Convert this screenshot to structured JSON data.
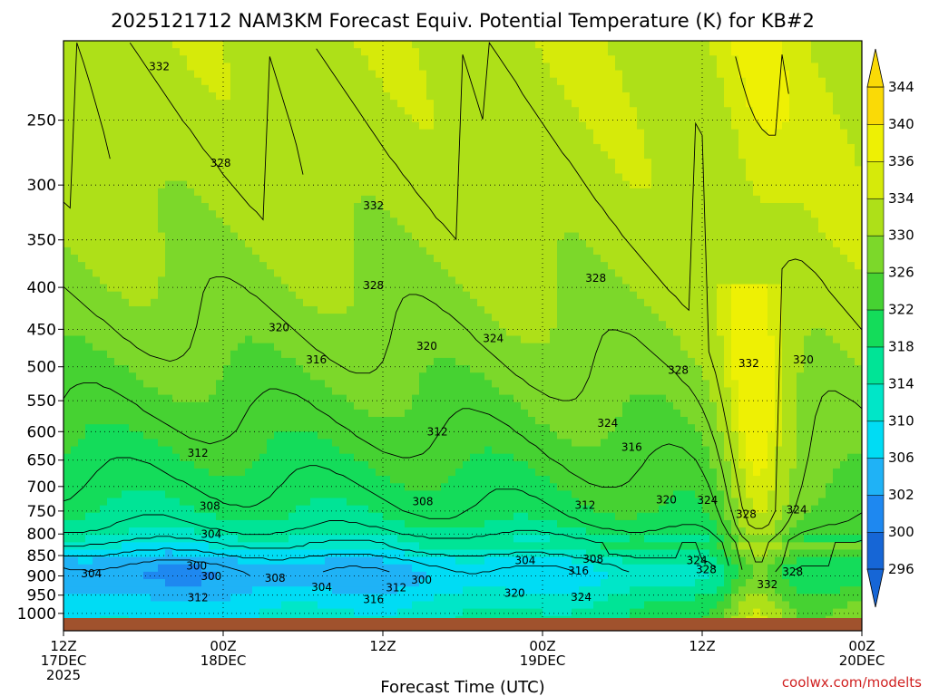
{
  "chart_data": {
    "type": "heatmap",
    "title": "2025121712 NAM3KM Forecast Equiv. Potential Temperature (K) for KB#2",
    "xlabel": "Forecast Time (UTC)",
    "ylabel": "",
    "x_ticks": [
      {
        "hours": 0,
        "line1": "12Z",
        "line2": "17DEC",
        "line3": "2025"
      },
      {
        "hours": 12,
        "line1": "00Z",
        "line2": "18DEC",
        "line3": ""
      },
      {
        "hours": 24,
        "line1": "12Z",
        "line2": "",
        "line3": ""
      },
      {
        "hours": 36,
        "line1": "00Z",
        "line2": "19DEC",
        "line3": ""
      },
      {
        "hours": 48,
        "line1": "12Z",
        "line2": "",
        "line3": ""
      },
      {
        "hours": 60,
        "line1": "00Z",
        "line2": "20DEC",
        "line3": ""
      }
    ],
    "xlim_hours": [
      0,
      60
    ],
    "y_axis": "pressure (hPa), log scale, inverted",
    "ylim": [
      1050,
      200
    ],
    "y_ticks": [
      250,
      300,
      350,
      400,
      450,
      500,
      550,
      600,
      650,
      700,
      750,
      800,
      850,
      900,
      950,
      1000
    ],
    "grid": true,
    "units": "K",
    "colorbar": {
      "levels": [
        296,
        300,
        302,
        306,
        310,
        314,
        318,
        322,
        326,
        330,
        334,
        336,
        340,
        344
      ],
      "colors": [
        "#1666d6",
        "#1e88f0",
        "#1fb2f6",
        "#00dcf4",
        "#00e6c8",
        "#00e496",
        "#14dc5a",
        "#46d232",
        "#7cd82a",
        "#aee018",
        "#d6ea0a",
        "#eef004",
        "#fada06"
      ],
      "extend": "both"
    },
    "contour_labels": [
      {
        "value": "332",
        "hour": 7.2,
        "p": 215
      },
      {
        "value": "328",
        "hour": 11.8,
        "p": 282
      },
      {
        "value": "332",
        "hour": 23.3,
        "p": 318
      },
      {
        "value": "328",
        "hour": 23.3,
        "p": 398
      },
      {
        "value": "320",
        "hour": 16.2,
        "p": 448
      },
      {
        "value": "316",
        "hour": 19.0,
        "p": 490
      },
      {
        "value": "320",
        "hour": 27.3,
        "p": 472
      },
      {
        "value": "324",
        "hour": 32.3,
        "p": 462
      },
      {
        "value": "328",
        "hour": 40.0,
        "p": 390
      },
      {
        "value": "328",
        "hour": 46.2,
        "p": 505
      },
      {
        "value": "332",
        "hour": 51.5,
        "p": 495
      },
      {
        "value": "320",
        "hour": 55.6,
        "p": 490
      },
      {
        "value": "312",
        "hour": 10.1,
        "p": 637
      },
      {
        "value": "312",
        "hour": 28.1,
        "p": 600
      },
      {
        "value": "324",
        "hour": 40.9,
        "p": 586
      },
      {
        "value": "316",
        "hour": 42.7,
        "p": 627
      },
      {
        "value": "308",
        "hour": 11.0,
        "p": 740
      },
      {
        "value": "308",
        "hour": 27.0,
        "p": 730
      },
      {
        "value": "312",
        "hour": 39.2,
        "p": 738
      },
      {
        "value": "320",
        "hour": 45.3,
        "p": 727
      },
      {
        "value": "324",
        "hour": 48.4,
        "p": 728
      },
      {
        "value": "328",
        "hour": 51.3,
        "p": 757
      },
      {
        "value": "324",
        "hour": 55.1,
        "p": 747
      },
      {
        "value": "304",
        "hour": 11.1,
        "p": 801
      },
      {
        "value": "300",
        "hour": 10.0,
        "p": 875
      },
      {
        "value": "304",
        "hour": 2.1,
        "p": 894
      },
      {
        "value": "300",
        "hour": 11.1,
        "p": 901
      },
      {
        "value": "308",
        "hour": 15.9,
        "p": 906
      },
      {
        "value": "304",
        "hour": 19.4,
        "p": 929
      },
      {
        "value": "300",
        "hour": 26.9,
        "p": 910
      },
      {
        "value": "312",
        "hour": 25.0,
        "p": 930
      },
      {
        "value": "316",
        "hour": 23.3,
        "p": 962
      },
      {
        "value": "312",
        "hour": 10.1,
        "p": 957
      },
      {
        "value": "320",
        "hour": 33.9,
        "p": 945
      },
      {
        "value": "304",
        "hour": 34.7,
        "p": 862
      },
      {
        "value": "308",
        "hour": 39.8,
        "p": 859
      },
      {
        "value": "316",
        "hour": 38.7,
        "p": 888
      },
      {
        "value": "324",
        "hour": 38.9,
        "p": 955
      },
      {
        "value": "324",
        "hour": 47.6,
        "p": 862
      },
      {
        "value": "328",
        "hour": 48.3,
        "p": 884
      },
      {
        "value": "332",
        "hour": 52.9,
        "p": 922
      },
      {
        "value": "328",
        "hour": 54.8,
        "p": 890
      }
    ]
  },
  "credit": "coolwx.com/modelts"
}
